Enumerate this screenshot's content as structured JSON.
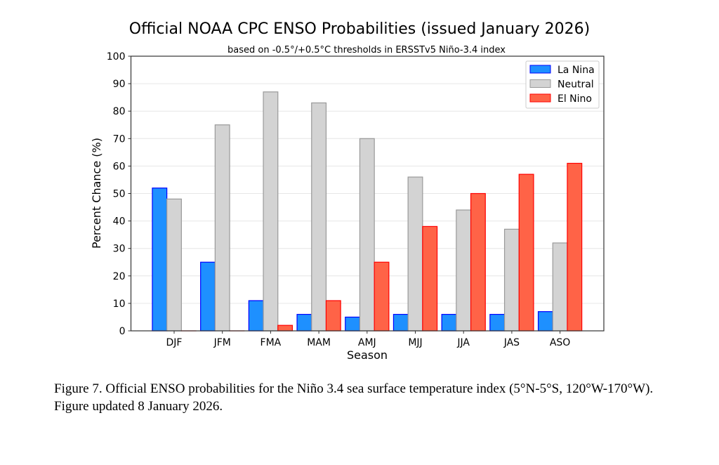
{
  "chart_data": {
    "type": "bar",
    "title": "Official NOAA CPC ENSO Probabilities (issued January 2026)",
    "subtitle": "based on -0.5°/+0.5°C thresholds in ERSSTv5 Niño-3.4 index",
    "xlabel": "Season",
    "ylabel": "Percent Chance (%)",
    "ylim": [
      0,
      100
    ],
    "yticks": [
      0,
      10,
      20,
      30,
      40,
      50,
      60,
      70,
      80,
      90,
      100
    ],
    "grid": true,
    "legend": "top-right",
    "categories": [
      "DJF",
      "JFM",
      "FMA",
      "MAM",
      "AMJ",
      "MJJ",
      "JJA",
      "JAS",
      "ASO"
    ],
    "series": [
      {
        "name": "La Nina",
        "values": [
          52,
          25,
          11,
          6,
          5,
          6,
          6,
          6,
          7
        ],
        "fill": "#1e90ff",
        "edge": "#0000ff"
      },
      {
        "name": "Neutral",
        "values": [
          48,
          75,
          87,
          83,
          70,
          56,
          44,
          37,
          32
        ],
        "fill": "#d3d3d3",
        "edge": "#999999"
      },
      {
        "name": "El Nino",
        "values": [
          0,
          0,
          2,
          11,
          25,
          38,
          50,
          57,
          61
        ],
        "fill": "#ff6347",
        "edge": "#ff0000"
      }
    ]
  },
  "caption": "Figure 7. Official ENSO probabilities for the Niño 3.4 sea surface temperature index (5°N-5°S, 120°W-170°W). Figure updated 8 January 2026."
}
